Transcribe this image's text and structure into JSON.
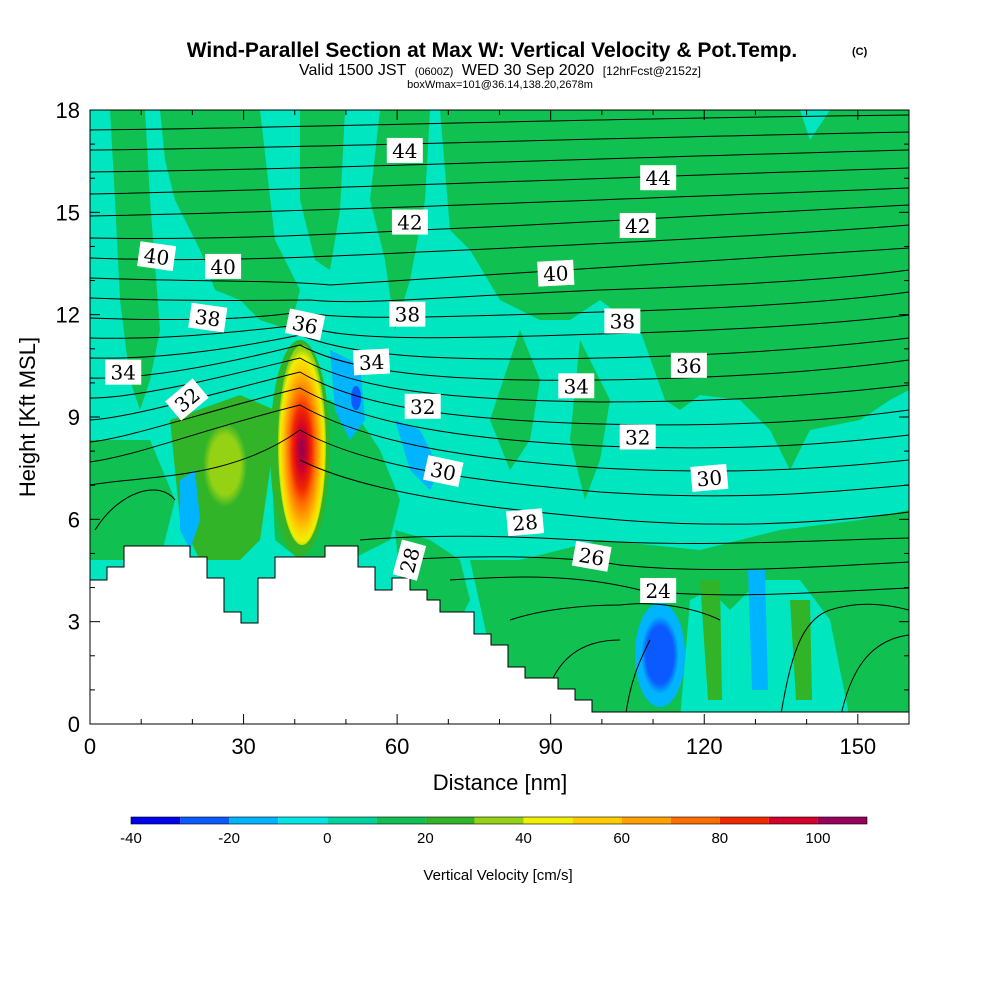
{
  "chart_data": {
    "type": "heatmap",
    "title": "Wind-Parallel Section at Max W: Vertical Velocity & Pot.Temp.",
    "title_mark": "(C)",
    "subtitle_parts": {
      "a": "Valid 1500 JST",
      "b": "(0600Z)",
      "c": "WED 30 Sep 2020",
      "d": "[12hrFcst@2152z]"
    },
    "subtitle2": "boxWmax=101@36.14,138.20,2678m",
    "xlabel": "Distance [nm]",
    "ylabel": "Height [Kft MSL]",
    "xlim": [
      0,
      160
    ],
    "ylim": [
      0,
      18
    ],
    "x_ticks": [
      0,
      30,
      60,
      90,
      120,
      150
    ],
    "y_ticks": [
      0,
      3,
      6,
      9,
      12,
      15,
      18
    ],
    "colorbar": {
      "label": "Vertical Velocity [cm/s]",
      "levels": [
        -40,
        -30,
        -20,
        -10,
        0,
        10,
        20,
        30,
        40,
        50,
        60,
        70,
        80,
        90,
        100,
        110
      ],
      "colors": [
        "#0000ee",
        "#0a5aff",
        "#00b4ff",
        "#00e6e6",
        "#00d2a0",
        "#10c050",
        "#32b428",
        "#96d214",
        "#f0f000",
        "#ffcc00",
        "#ffa000",
        "#ff6e00",
        "#f02800",
        "#d2002a",
        "#96005a",
        "#6e0096"
      ],
      "tick_labels": [
        "-40",
        "-20",
        "0",
        "20",
        "40",
        "60",
        "80",
        "100"
      ],
      "tick_values": [
        -40,
        -20,
        0,
        20,
        40,
        60,
        80,
        100
      ]
    },
    "contour_labels": [
      {
        "text": "44",
        "x": 61.5,
        "y": 16.8,
        "rot": 0
      },
      {
        "text": "44",
        "x": 111,
        "y": 16.0,
        "rot": 0
      },
      {
        "text": "42",
        "x": 62.5,
        "y": 14.7,
        "rot": 0
      },
      {
        "text": "42",
        "x": 107,
        "y": 14.6,
        "rot": 0
      },
      {
        "text": "40",
        "x": 13,
        "y": 13.7,
        "rot": 8
      },
      {
        "text": "40",
        "x": 26,
        "y": 13.4,
        "rot": 0
      },
      {
        "text": "40",
        "x": 91,
        "y": 13.2,
        "rot": -3
      },
      {
        "text": "38",
        "x": 23,
        "y": 11.9,
        "rot": 8
      },
      {
        "text": "38",
        "x": 62,
        "y": 12.0,
        "rot": 0
      },
      {
        "text": "38",
        "x": 104,
        "y": 11.8,
        "rot": 0
      },
      {
        "text": "36",
        "x": 42,
        "y": 11.7,
        "rot": 12
      },
      {
        "text": "36",
        "x": 117,
        "y": 10.5,
        "rot": 0
      },
      {
        "text": "34",
        "x": 6.5,
        "y": 10.3,
        "rot": 0
      },
      {
        "text": "34",
        "x": 55,
        "y": 10.6,
        "rot": -3
      },
      {
        "text": "34",
        "x": 95,
        "y": 9.9,
        "rot": 0
      },
      {
        "text": "32",
        "x": 19,
        "y": 9.5,
        "rot": -40
      },
      {
        "text": "32",
        "x": 65,
        "y": 9.3,
        "rot": 0
      },
      {
        "text": "32",
        "x": 107,
        "y": 8.4,
        "rot": 0
      },
      {
        "text": "30",
        "x": 69,
        "y": 7.4,
        "rot": 12
      },
      {
        "text": "30",
        "x": 121,
        "y": 7.2,
        "rot": -5
      },
      {
        "text": "28",
        "x": 85,
        "y": 5.9,
        "rot": -5
      },
      {
        "text": "28",
        "x": 62.5,
        "y": 4.8,
        "rot": -75
      },
      {
        "text": "26",
        "x": 98,
        "y": 4.9,
        "rot": 10
      },
      {
        "text": "24",
        "x": 111,
        "y": 3.9,
        "rot": 0
      }
    ]
  }
}
